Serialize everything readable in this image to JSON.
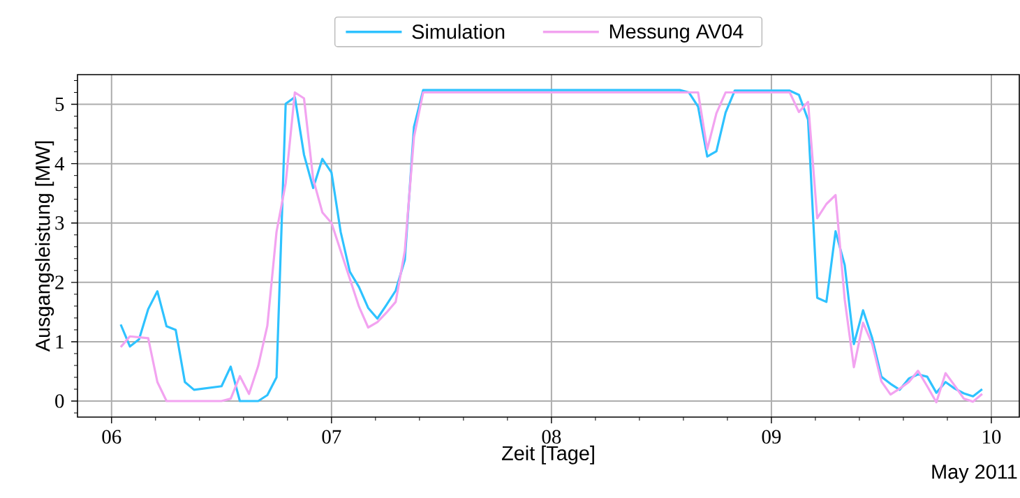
{
  "chart_data": {
    "type": "line",
    "xlabel": "Zeit [Tage]",
    "ylabel": "Ausgangsleistung [MW]",
    "annotations": [
      "May 2011"
    ],
    "series": [
      {
        "name": "Simulation",
        "color": "#2ec2ff",
        "x": [
          "2011-05-06T01:00",
          "2011-05-06T02:00",
          "2011-05-06T03:00",
          "2011-05-06T04:00",
          "2011-05-06T05:00",
          "2011-05-06T06:00",
          "2011-05-06T07:00",
          "2011-05-06T08:00",
          "2011-05-06T09:00",
          "2011-05-06T12:00",
          "2011-05-06T13:00",
          "2011-05-06T14:00",
          "2011-05-06T16:00",
          "2011-05-06T17:00",
          "2011-05-06T18:00",
          "2011-05-06T19:00",
          "2011-05-06T20:00",
          "2011-05-06T21:00",
          "2011-05-06T22:00",
          "2011-05-06T23:00",
          "2011-05-07T00:00",
          "2011-05-07T01:00",
          "2011-05-07T02:00",
          "2011-05-07T03:00",
          "2011-05-07T04:00",
          "2011-05-07T05:00",
          "2011-05-07T06:00",
          "2011-05-07T07:00",
          "2011-05-07T08:00",
          "2011-05-07T09:00",
          "2011-05-07T10:00",
          "2011-05-07T21:00",
          "2011-05-08T07:00",
          "2011-05-08T14:00",
          "2011-05-08T15:00",
          "2011-05-08T16:00",
          "2011-05-08T17:00",
          "2011-05-08T18:00",
          "2011-05-08T19:00",
          "2011-05-08T20:00",
          "2011-05-09T02:00",
          "2011-05-09T03:00",
          "2011-05-09T04:00",
          "2011-05-09T05:00",
          "2011-05-09T06:00",
          "2011-05-09T07:00",
          "2011-05-09T08:00",
          "2011-05-09T09:00",
          "2011-05-09T10:00",
          "2011-05-09T11:00",
          "2011-05-09T12:00",
          "2011-05-09T13:00",
          "2011-05-09T14:00",
          "2011-05-09T15:00",
          "2011-05-09T16:00",
          "2011-05-09T17:00",
          "2011-05-09T18:00",
          "2011-05-09T19:00",
          "2011-05-09T20:00",
          "2011-05-09T21:00",
          "2011-05-09T22:00",
          "2011-05-09T23:00"
        ],
        "values": [
          1.29,
          0.92,
          1.04,
          1.55,
          1.85,
          1.26,
          1.2,
          0.32,
          0.19,
          0.25,
          0.58,
          0,
          0,
          0.1,
          0.4,
          5.01,
          5.12,
          4.15,
          3.59,
          4.08,
          3.85,
          2.85,
          2.18,
          1.92,
          1.57,
          1.39,
          1.62,
          1.86,
          2.38,
          4.62,
          5.24,
          5.24,
          5.24,
          5.24,
          5.2,
          4.96,
          4.12,
          4.21,
          4.86,
          5.23,
          5.23,
          5.16,
          4.74,
          1.74,
          1.67,
          2.86,
          2.29,
          0.96,
          1.53,
          1.06,
          0.41,
          0.29,
          0.19,
          0.38,
          0.45,
          0.41,
          0.14,
          0.32,
          0.21,
          0.13,
          0.08,
          0.2
        ]
      },
      {
        "name": "Messung AV04",
        "color": "#f2a3f0",
        "x": [
          "2011-05-06T01:00",
          "2011-05-06T02:00",
          "2011-05-06T04:00",
          "2011-05-06T05:00",
          "2011-05-06T06:00",
          "2011-05-06T12:00",
          "2011-05-06T13:00",
          "2011-05-06T14:00",
          "2011-05-06T15:00",
          "2011-05-06T16:00",
          "2011-05-06T17:00",
          "2011-05-06T18:00",
          "2011-05-06T19:00",
          "2011-05-06T20:00",
          "2011-05-06T21:00",
          "2011-05-06T22:00",
          "2011-05-06T23:00",
          "2011-05-07T00:00",
          "2011-05-07T01:00",
          "2011-05-07T02:00",
          "2011-05-07T03:00",
          "2011-05-07T04:00",
          "2011-05-07T05:00",
          "2011-05-07T06:00",
          "2011-05-07T07:00",
          "2011-05-07T08:00",
          "2011-05-07T09:00",
          "2011-05-07T10:00",
          "2011-05-08T16:00",
          "2011-05-08T17:00",
          "2011-05-08T18:00",
          "2011-05-08T19:00",
          "2011-05-09T02:00",
          "2011-05-09T03:00",
          "2011-05-09T04:00",
          "2011-05-09T05:00",
          "2011-05-09T06:00",
          "2011-05-09T07:00",
          "2011-05-09T08:00",
          "2011-05-09T09:00",
          "2011-05-09T10:00",
          "2011-05-09T11:00",
          "2011-05-09T12:00",
          "2011-05-09T13:00",
          "2011-05-09T14:00",
          "2011-05-09T15:00",
          "2011-05-09T16:00",
          "2011-05-09T17:00",
          "2011-05-09T18:00",
          "2011-05-09T19:00",
          "2011-05-09T20:00",
          "2011-05-09T21:00",
          "2011-05-09T22:00",
          "2011-05-09T23:00"
        ],
        "values": [
          0.91,
          1.09,
          1.06,
          0.32,
          0,
          0,
          0.04,
          0.42,
          0.12,
          0.59,
          1.27,
          2.85,
          3.67,
          5.2,
          5.1,
          3.74,
          3.18,
          3.0,
          2.53,
          2.06,
          1.59,
          1.24,
          1.33,
          1.49,
          1.67,
          2.53,
          4.45,
          5.2,
          5.2,
          4.24,
          4.85,
          5.2,
          5.2,
          4.87,
          5.04,
          3.08,
          3.32,
          3.47,
          1.71,
          0.57,
          1.32,
          0.96,
          0.33,
          0.11,
          0.21,
          0.32,
          0.51,
          0.25,
          -0.02,
          0.47,
          0.26,
          0.04,
          -0.01,
          0.12
        ]
      }
    ],
    "xlim": [
      "2011-05-05T20:17",
      "2011-05-10T03:03"
    ],
    "xticks": [
      {
        "value": "2011-05-06",
        "label": "06"
      },
      {
        "value": "2011-05-06T04:48",
        "label": null
      },
      {
        "value": "2011-05-06T09:36",
        "label": null
      },
      {
        "value": "2011-05-06T14:24",
        "label": null
      },
      {
        "value": "2011-05-06T19:12",
        "label": null
      },
      {
        "value": "2011-05-07",
        "label": "07"
      },
      {
        "value": "2011-05-07T04:48",
        "label": null
      },
      {
        "value": "2011-05-07T09:36",
        "label": null
      },
      {
        "value": "2011-05-07T14:24",
        "label": null
      },
      {
        "value": "2011-05-07T19:12",
        "label": null
      },
      {
        "value": "2011-05-08",
        "label": "08"
      },
      {
        "value": "2011-05-08T04:48",
        "label": null
      },
      {
        "value": "2011-05-08T09:36",
        "label": null
      },
      {
        "value": "2011-05-08T14:24",
        "label": null
      },
      {
        "value": "2011-05-08T19:12",
        "label": null
      },
      {
        "value": "2011-05-09",
        "label": "09"
      },
      {
        "value": "2011-05-09T04:48",
        "label": null
      },
      {
        "value": "2011-05-09T09:36",
        "label": null
      },
      {
        "value": "2011-05-09T14:24",
        "label": null
      },
      {
        "value": "2011-05-09T19:12",
        "label": null
      },
      {
        "value": "2011-05-10",
        "label": "10"
      }
    ],
    "ylim": [
      -0.27,
      5.5
    ],
    "yticks": [
      {
        "value": -0.2,
        "label": null
      },
      0,
      {
        "value": 0.2,
        "label": null
      },
      {
        "value": 0.4,
        "label": null
      },
      {
        "value": 0.6,
        "label": null
      },
      {
        "value": 0.8,
        "label": null
      },
      1,
      {
        "value": 1.2,
        "label": null
      },
      {
        "value": 1.4,
        "label": null
      },
      {
        "value": 1.6,
        "label": null
      },
      {
        "value": 1.8,
        "label": null
      },
      2,
      {
        "value": 2.2,
        "label": null
      },
      {
        "value": 2.4,
        "label": null
      },
      {
        "value": 2.6,
        "label": null
      },
      {
        "value": 2.8,
        "label": null
      },
      3,
      {
        "value": 3.2,
        "label": null
      },
      {
        "value": 3.4,
        "label": null
      },
      {
        "value": 3.6,
        "label": null
      },
      {
        "value": 3.8,
        "label": null
      },
      4,
      {
        "value": 4.2,
        "label": null
      },
      {
        "value": 4.4,
        "label": null
      },
      {
        "value": 4.6,
        "label": null
      },
      {
        "value": 4.8,
        "label": null
      },
      5,
      {
        "value": 5.2,
        "label": null
      },
      {
        "value": 5.4,
        "label": null
      }
    ],
    "grid": true,
    "legend": "top",
    "line_style": "solid",
    "marker": "none"
  }
}
